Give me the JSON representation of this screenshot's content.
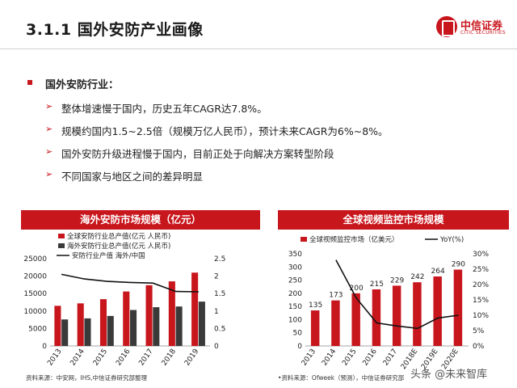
{
  "slide": {
    "title": "3.1.1 国外安防产业画像"
  },
  "logo": {
    "brand": "中信证券",
    "brand_en": "CITIC SECURITIES"
  },
  "section": {
    "heading": "国外安防行业："
  },
  "bullets": [
    "整体增速慢于国内，历史五年CAGR达7.8%。",
    "规模约国内1.5~2.5倍（规模万亿人民币），预计未来CAGR为6%~8%。",
    "国外安防升级进程慢于国内，目前正处于向解决方案转型阶段",
    "不同国家与地区之间的差异明显"
  ],
  "left_panel": {
    "title": "海外安防市场规模（亿元）",
    "source": "资料来源：中安网，IHS,中信证券研究部整理"
  },
  "right_panel": {
    "title": "全球视频监控市场规模",
    "source": "•资料来源：Ofweek（预测），中信证券研究部"
  },
  "watermark": "头条 @未来智库",
  "colors": {
    "accent": "#c8161d",
    "dark": "#3a3a3a",
    "line": "#111111"
  },
  "chart_data": [
    {
      "type": "bar",
      "categories": [
        "2013",
        "2014",
        "2015",
        "2016",
        "2017",
        "2018",
        "2019"
      ],
      "series": [
        {
          "name": "全球安防行业总产值(亿元 人民币)",
          "type": "bar",
          "axis": "left",
          "color": "#c8161d",
          "values": [
            11500,
            12200,
            13400,
            15600,
            17400,
            18500,
            21000
          ]
        },
        {
          "name": "海外安防行业总产值(亿元 人民币)",
          "type": "bar",
          "axis": "left",
          "color": "#3a3a3a",
          "values": [
            7600,
            7900,
            8600,
            10300,
            11100,
            11300,
            12700
          ]
        },
        {
          "name": "安防行业产值 海外/中国",
          "type": "line",
          "axis": "right",
          "color": "#111111",
          "values": [
            2.05,
            1.92,
            1.85,
            1.82,
            1.8,
            1.56,
            1.55
          ]
        }
      ],
      "y_left": {
        "min": 0,
        "max": 25000,
        "ticks": [
          "0",
          "5000",
          "10000",
          "15000",
          "20000",
          "25000"
        ]
      },
      "y_right": {
        "min": 0,
        "max": 2.5,
        "ticks": [
          "0",
          "0.5",
          "1",
          "1.5",
          "2",
          "2.5"
        ]
      },
      "legend": "top"
    },
    {
      "type": "bar",
      "categories": [
        "2013",
        "2014",
        "2015",
        "2016",
        "2017",
        "2018E",
        "2019E",
        "2020E"
      ],
      "series": [
        {
          "name": "全球视频监控市场（亿美元）",
          "type": "bar",
          "axis": "left",
          "color": "#c8161d",
          "values": [
            135,
            173,
            200,
            215,
            229,
            242,
            264,
            290
          ],
          "labels": [
            "135",
            "173",
            "200",
            "215",
            "229",
            "242",
            "264",
            "290"
          ]
        },
        {
          "name": "YoY(%)",
          "type": "line",
          "axis": "right",
          "color": "#111111",
          "values": [
            null,
            28,
            15.6,
            7.5,
            6.5,
            5.7,
            9.1,
            10
          ]
        }
      ],
      "y_left": {
        "min": 0,
        "max": 350,
        "ticks": [
          "0",
          "50",
          "100",
          "150",
          "200",
          "250",
          "300",
          "350"
        ]
      },
      "y_right": {
        "min": 0,
        "max": 30,
        "ticks": [
          "0%",
          "5%",
          "10%",
          "15%",
          "20%",
          "25%",
          "30%"
        ]
      },
      "legend": "top"
    }
  ]
}
